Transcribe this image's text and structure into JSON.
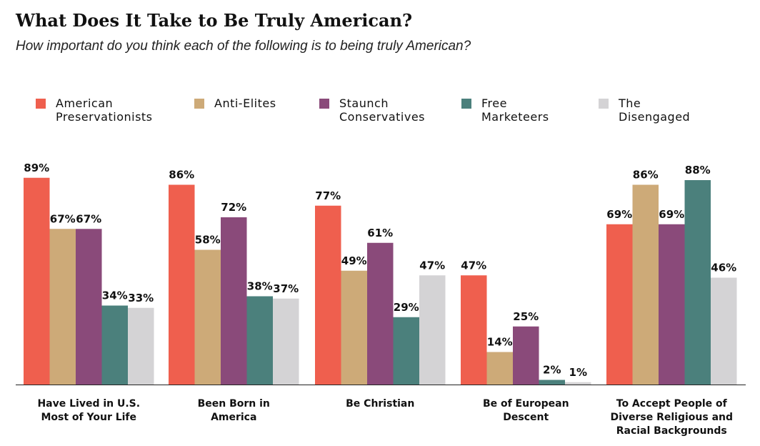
{
  "chart_data": {
    "type": "bar",
    "title": "What Does It Take to Be Truly American?",
    "subtitle": "How important do you think each of the following is to being truly American?",
    "categories": [
      [
        "Have Lived in U.S.",
        "Most of Your Life"
      ],
      [
        "Been Born in",
        "America"
      ],
      [
        "Be Christian"
      ],
      [
        "Be of European",
        "Descent"
      ],
      [
        "To Accept People of",
        "Diverse Religious and",
        "Racial Backgrounds"
      ]
    ],
    "series": [
      {
        "name": "American\nPreservationists",
        "color": "#ef5f4e",
        "values": [
          89,
          86,
          77,
          47,
          69
        ]
      },
      {
        "name": "Anti-Elites",
        "color": "#cdaa78",
        "values": [
          67,
          58,
          49,
          14,
          86
        ]
      },
      {
        "name": "Staunch\nConservatives",
        "color": "#8a4a7a",
        "values": [
          67,
          72,
          61,
          25,
          69
        ]
      },
      {
        "name": "Free\nMarketeers",
        "color": "#4b807c",
        "values": [
          34,
          38,
          29,
          2,
          88
        ]
      },
      {
        "name": "The\nDisengaged",
        "color": "#d4d3d5",
        "values": [
          33,
          37,
          47,
          1,
          46
        ]
      }
    ],
    "value_suffix": "%",
    "ylim": [
      0,
      100
    ],
    "legend_position": "top",
    "grid": false
  }
}
